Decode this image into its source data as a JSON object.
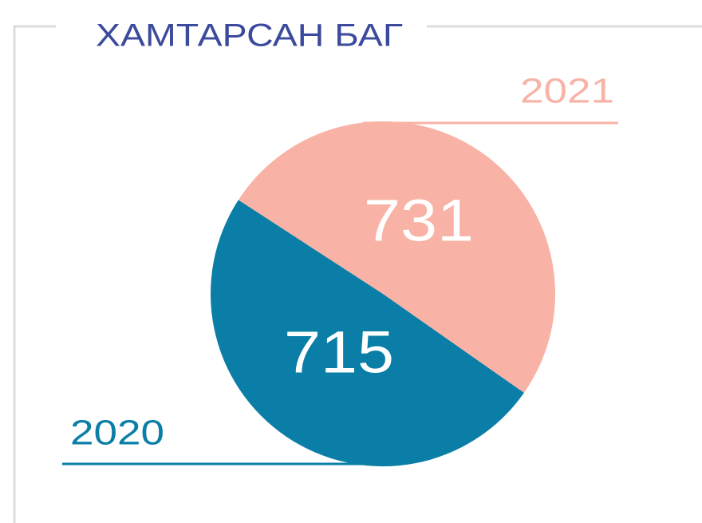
{
  "chart_data": {
    "type": "pie",
    "title": "ХАМТАРСАН БАГ",
    "categories": [
      "2020",
      "2021"
    ],
    "values": [
      715,
      731
    ],
    "colors": [
      "#0a7ea6",
      "#f8b3a6"
    ],
    "title_color": "#3b4a9c"
  }
}
